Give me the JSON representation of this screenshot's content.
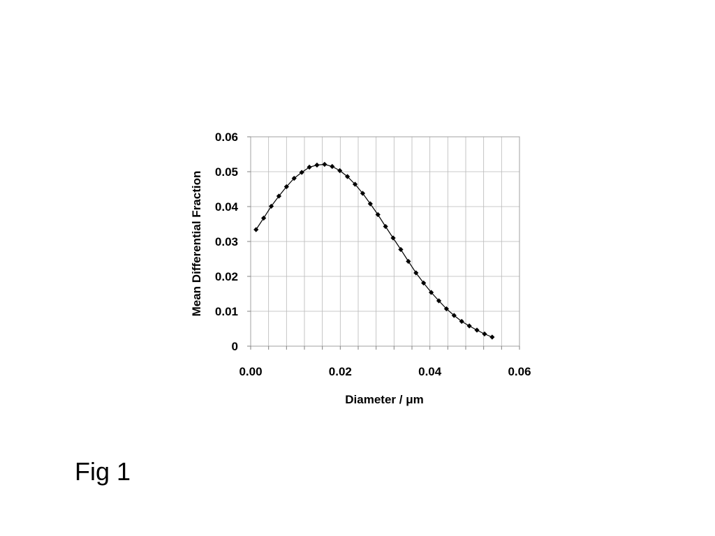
{
  "caption": "Fig 1",
  "chart_data": {
    "type": "line",
    "title": "",
    "xlabel": "Diameter /  μm",
    "ylabel": "Mean Differential Fraction",
    "xlim": [
      0.0,
      0.06
    ],
    "ylim": [
      0,
      0.06
    ],
    "x_ticks": [
      0.0,
      0.02,
      0.04,
      0.06
    ],
    "x_tick_labels": [
      "0.00",
      "0.02",
      "0.04",
      "0.06"
    ],
    "y_ticks": [
      0,
      0.01,
      0.02,
      0.03,
      0.04,
      0.05,
      0.06
    ],
    "y_tick_labels": [
      "0",
      "0.01",
      "0.02",
      "0.03",
      "0.04",
      "0.05",
      "0.06"
    ],
    "grid": true,
    "legend": "none",
    "marker": "diamond",
    "line_color": "#000000",
    "series": [
      {
        "x": [
          0.0012,
          0.0029,
          0.0046,
          0.0063,
          0.008,
          0.0097,
          0.0114,
          0.0131,
          0.0148,
          0.0165,
          0.0182,
          0.0199,
          0.0216,
          0.0233,
          0.025,
          0.0267,
          0.0284,
          0.0301,
          0.0318,
          0.0335,
          0.0352,
          0.0369,
          0.0386,
          0.0403,
          0.042,
          0.0437,
          0.0454,
          0.0471,
          0.0488,
          0.0505,
          0.0522,
          0.0539
        ],
        "y": [
          0.0334,
          0.0367,
          0.0401,
          0.043,
          0.0457,
          0.0481,
          0.0498,
          0.0513,
          0.0519,
          0.0521,
          0.0515,
          0.0503,
          0.0486,
          0.0464,
          0.0438,
          0.0408,
          0.0377,
          0.0343,
          0.031,
          0.0277,
          0.0243,
          0.021,
          0.0181,
          0.0154,
          0.013,
          0.0107,
          0.0088,
          0.0071,
          0.0058,
          0.0046,
          0.0035,
          0.0026
        ]
      }
    ]
  }
}
